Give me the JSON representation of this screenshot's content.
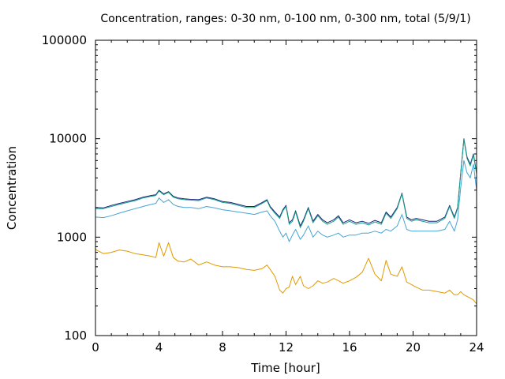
{
  "chart_data": {
    "type": "line",
    "title": "Concentration, ranges: 0-30 nm, 0-100 nm, 0-300 nm, total (5/9/1)",
    "xlabel": "Time [hour]",
    "ylabel": "Concentration",
    "xlim": [
      0,
      24
    ],
    "ylim": [
      100,
      100000
    ],
    "yscale": "log",
    "grid": false,
    "legend": "none",
    "x_ticks": [
      "0",
      "4",
      "8",
      "12",
      "16",
      "20",
      "24"
    ],
    "y_ticks": [
      "100",
      "1000",
      "10000",
      "100000"
    ],
    "series": [
      {
        "color": "#1a237e",
        "x": [
          0,
          0.5,
          1,
          1.5,
          2,
          2.5,
          3,
          3.5,
          3.8,
          4,
          4.3,
          4.6,
          4.9,
          5.2,
          5.6,
          6,
          6.5,
          7,
          7.5,
          8,
          8.5,
          9,
          9.5,
          10,
          10.5,
          10.8,
          11,
          11.3,
          11.6,
          11.8,
          12,
          12.2,
          12.4,
          12.6,
          12.9,
          13.1,
          13.4,
          13.7,
          14,
          14.3,
          14.6,
          15,
          15.3,
          15.6,
          16,
          16.4,
          16.8,
          17.2,
          17.6,
          18,
          18.3,
          18.6,
          19,
          19.3,
          19.6,
          19.9,
          20.2,
          20.6,
          21,
          21.5,
          22,
          22.3,
          22.6,
          22.8,
          23,
          23.2,
          23.4,
          23.6,
          23.8,
          24
        ],
        "y": [
          2000,
          1980,
          2100,
          2200,
          2300,
          2400,
          2550,
          2650,
          2700,
          3000,
          2750,
          2900,
          2600,
          2500,
          2450,
          2420,
          2400,
          2550,
          2450,
          2300,
          2250,
          2150,
          2050,
          2050,
          2250,
          2400,
          2050,
          1800,
          1600,
          1900,
          2100,
          1400,
          1500,
          1850,
          1300,
          1500,
          2000,
          1450,
          1700,
          1500,
          1400,
          1500,
          1650,
          1400,
          1500,
          1400,
          1450,
          1380,
          1480,
          1400,
          1800,
          1600,
          2000,
          2800,
          1600,
          1500,
          1550,
          1500,
          1450,
          1450,
          1600,
          2100,
          1600,
          2000,
          4500,
          10000,
          6500,
          5500,
          7000,
          4500
        ],
        "approx": true
      },
      {
        "color": "#16a085",
        "x": [
          0,
          0.5,
          1,
          1.5,
          2,
          2.5,
          3,
          3.5,
          3.8,
          4,
          4.3,
          4.6,
          4.9,
          5.2,
          5.6,
          6,
          6.5,
          7,
          7.5,
          8,
          8.5,
          9,
          9.5,
          10,
          10.5,
          10.8,
          11,
          11.3,
          11.6,
          11.8,
          12,
          12.2,
          12.4,
          12.6,
          12.9,
          13.1,
          13.4,
          13.7,
          14,
          14.3,
          14.6,
          15,
          15.3,
          15.6,
          16,
          16.4,
          16.8,
          17.2,
          17.6,
          18,
          18.3,
          18.6,
          19,
          19.3,
          19.6,
          19.9,
          20.2,
          20.6,
          21,
          21.5,
          22,
          22.3,
          22.6,
          22.8,
          23,
          23.2,
          23.4,
          23.6,
          23.8,
          24
        ],
        "y": [
          1950,
          1950,
          2050,
          2150,
          2250,
          2350,
          2500,
          2600,
          2650,
          2950,
          2700,
          2850,
          2550,
          2450,
          2400,
          2380,
          2350,
          2500,
          2400,
          2250,
          2200,
          2100,
          2000,
          2000,
          2200,
          2350,
          2000,
          1750,
          1550,
          1850,
          2050,
          1350,
          1450,
          1800,
          1250,
          1450,
          1950,
          1400,
          1650,
          1450,
          1350,
          1450,
          1600,
          1350,
          1450,
          1350,
          1400,
          1330,
          1430,
          1350,
          1750,
          1550,
          1950,
          2750,
          1550,
          1450,
          1500,
          1450,
          1400,
          1400,
          1550,
          2050,
          1550,
          1950,
          4400,
          9800,
          6300,
          5300,
          6800,
          4400
        ],
        "approx": true
      },
      {
        "color": "#42a5d6",
        "x": [
          0,
          0.5,
          1,
          1.5,
          2,
          2.5,
          3,
          3.5,
          3.8,
          4,
          4.3,
          4.6,
          4.9,
          5.2,
          5.6,
          6,
          6.5,
          7,
          7.5,
          8,
          8.5,
          9,
          9.5,
          10,
          10.5,
          10.8,
          11,
          11.3,
          11.6,
          11.8,
          12,
          12.2,
          12.4,
          12.6,
          12.9,
          13.1,
          13.4,
          13.7,
          14,
          14.3,
          14.6,
          15,
          15.3,
          15.6,
          16,
          16.4,
          16.8,
          17.2,
          17.6,
          18,
          18.3,
          18.6,
          19,
          19.3,
          19.6,
          19.9,
          20.2,
          20.6,
          21,
          21.5,
          22,
          22.3,
          22.6,
          22.8,
          23,
          23.2,
          23.4,
          23.6,
          23.8,
          24
        ],
        "y": [
          1600,
          1580,
          1650,
          1750,
          1850,
          1950,
          2050,
          2150,
          2200,
          2500,
          2250,
          2400,
          2150,
          2050,
          2000,
          2000,
          1950,
          2050,
          1980,
          1900,
          1850,
          1800,
          1750,
          1700,
          1800,
          1850,
          1650,
          1450,
          1150,
          1000,
          1100,
          900,
          1050,
          1200,
          950,
          1050,
          1300,
          1000,
          1150,
          1050,
          1000,
          1050,
          1100,
          1000,
          1050,
          1050,
          1100,
          1100,
          1150,
          1100,
          1200,
          1150,
          1300,
          1700,
          1200,
          1150,
          1150,
          1150,
          1150,
          1150,
          1200,
          1450,
          1150,
          1500,
          3200,
          6000,
          4500,
          4000,
          5500,
          3000
        ],
        "approx": true
      },
      {
        "color": "#e09a00",
        "x": [
          0,
          0.5,
          1,
          1.5,
          2,
          2.5,
          3,
          3.5,
          3.8,
          4,
          4.3,
          4.6,
          4.9,
          5.2,
          5.6,
          6,
          6.5,
          7,
          7.5,
          8,
          8.5,
          9,
          9.5,
          10,
          10.5,
          10.8,
          11,
          11.3,
          11.6,
          11.8,
          12,
          12.2,
          12.4,
          12.6,
          12.9,
          13.1,
          13.4,
          13.7,
          14,
          14.3,
          14.6,
          15,
          15.3,
          15.6,
          16,
          16.4,
          16.8,
          17.2,
          17.6,
          18,
          18.3,
          18.6,
          19,
          19.3,
          19.6,
          19.9,
          20.2,
          20.6,
          21,
          21.5,
          22,
          22.3,
          22.6,
          22.8,
          23,
          23.2,
          23.4,
          23.6,
          23.8,
          24
        ],
        "y": [
          750,
          680,
          700,
          740,
          720,
          680,
          660,
          640,
          620,
          880,
          640,
          880,
          620,
          570,
          560,
          600,
          520,
          560,
          520,
          500,
          500,
          490,
          470,
          460,
          480,
          520,
          470,
          400,
          290,
          270,
          300,
          310,
          400,
          330,
          400,
          320,
          300,
          320,
          360,
          340,
          350,
          380,
          360,
          340,
          360,
          390,
          440,
          610,
          420,
          360,
          580,
          420,
          400,
          500,
          350,
          330,
          310,
          290,
          290,
          280,
          270,
          290,
          260,
          260,
          280,
          260,
          250,
          240,
          230,
          210
        ],
        "approx": true
      }
    ]
  }
}
